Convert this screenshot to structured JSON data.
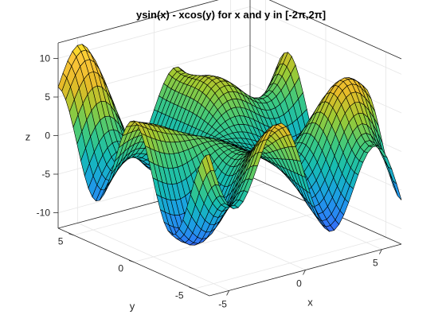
{
  "chart_data": {
    "type": "surface",
    "title": "ysin(x)  -  xcos(y)  for  x  and  y  in  [-2π,2π]",
    "xlabel": "x",
    "ylabel": "y",
    "zlabel": "z",
    "function": "z = y*sin(x) - x*cos(y)",
    "x_range": [
      -6.2832,
      6.2832
    ],
    "y_range": [
      -6.2832,
      6.2832
    ],
    "xlim": [
      -6.2832,
      6.2832
    ],
    "ylim": [
      -6.2832,
      6.2832
    ],
    "zlim": [
      -12,
      12
    ],
    "grid_samples": 40,
    "x_ticks": [
      "-5",
      "0",
      "5"
    ],
    "y_ticks": [
      "-5",
      "0",
      "5"
    ],
    "z_ticks": [
      "-10",
      "-5",
      "0",
      "5",
      "10"
    ],
    "colormap": [
      "#3e26a8",
      "#4743f8",
      "#2c80f7",
      "#1aa3e0",
      "#16bcb3",
      "#3fca7e",
      "#9dca33",
      "#e6bb28",
      "#fcc639",
      "#f9fb15"
    ],
    "edge_color": "#000000",
    "grid": true,
    "box": true,
    "view": "az -37.5, el 30"
  }
}
